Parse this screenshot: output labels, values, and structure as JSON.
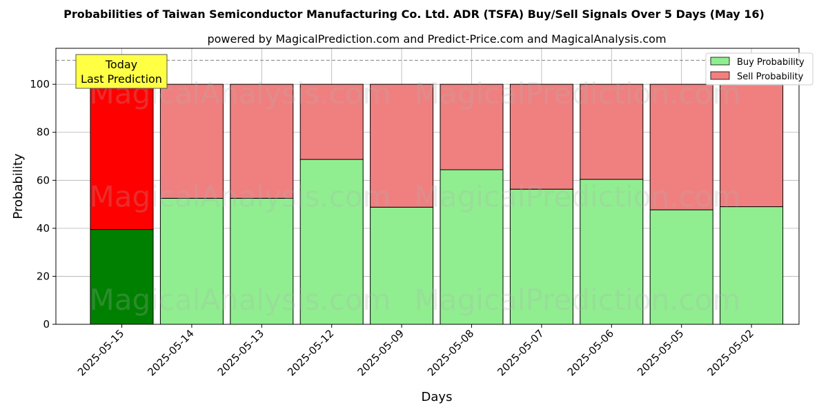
{
  "chart_data": {
    "type": "bar",
    "stacked": true,
    "title": "Probabilities of Taiwan Semiconductor Manufacturing Co. Ltd. ADR (TSFA) Buy/Sell Signals Over 5 Days (May 16)",
    "subtitle": "powered by MagicalPrediction.com and Predict-Price.com and MagicalAnalysis.com",
    "xlabel": "Days",
    "ylabel": "Probability",
    "ylim": [
      0,
      115
    ],
    "yticks": [
      0,
      20,
      40,
      60,
      80,
      100
    ],
    "grid": true,
    "legend_position": "top-right",
    "reference_line": 110,
    "categories": [
      "2025-05-15",
      "2025-05-14",
      "2025-05-13",
      "2025-05-12",
      "2025-05-09",
      "2025-05-08",
      "2025-05-07",
      "2025-05-06",
      "2025-05-05",
      "2025-05-02"
    ],
    "series": [
      {
        "name": "Buy Probability",
        "values": [
          39.5,
          52.5,
          52.5,
          68.7,
          48.8,
          64.4,
          56.3,
          60.4,
          47.7,
          49.0
        ]
      },
      {
        "name": "Sell Probability",
        "values": [
          60.5,
          47.5,
          47.5,
          31.3,
          51.2,
          35.6,
          43.7,
          39.6,
          52.3,
          51.0
        ]
      }
    ],
    "colors": {
      "buy": "#90ee90",
      "sell": "#f08080",
      "buy_highlight": "#008000",
      "sell_highlight": "#ff0000",
      "annotation_bg": "#ffff44"
    },
    "annotation": {
      "line1": "Today",
      "line2": "Last Prediction"
    },
    "watermarks": [
      "MagicalAnalysis.com",
      "MagicalPrediction.com"
    ]
  }
}
